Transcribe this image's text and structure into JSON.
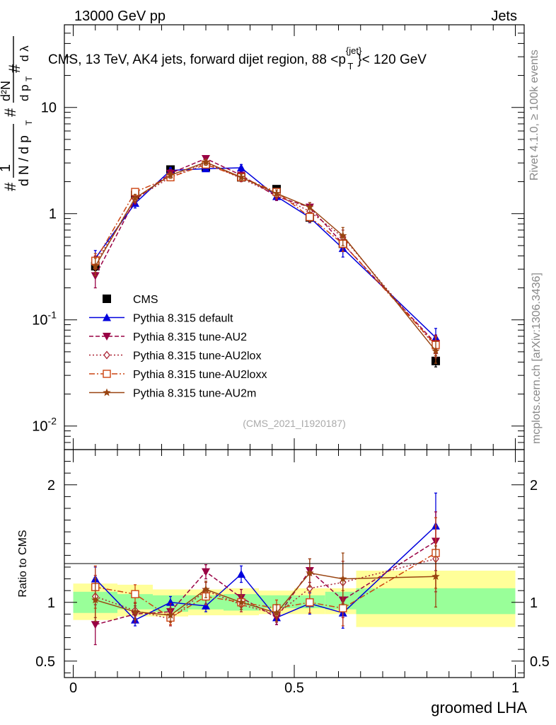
{
  "header": {
    "left": "13000 GeV pp",
    "right": "Jets"
  },
  "title_main": "CMS, 13 TeV, AK4 jets, forward dijet region, 88 <p",
  "title_sup": "{jet}",
  "title_sub": "T",
  "title_end": "}< 120 GeV",
  "side_labels": {
    "rivet": "Rivet 4.1.0, ≥ 100k events",
    "mcplots": "mcplots.cern.ch [arXiv:1306.3436]"
  },
  "watermark": "(CMS_2021_I1920187)",
  "ylabel_ratio": "Ratio to CMS",
  "xlabel": "groomed LHA",
  "colors": {
    "data": "#000000",
    "default": "#0000dd",
    "au2": "#990044",
    "au2lox": "#aa2233",
    "au2loxx": "#cc4411",
    "au2m": "#994411",
    "band_inner": "#99ff99",
    "band_outer": "#ffff99"
  },
  "chart_data": [
    {
      "type": "line",
      "yscale": "log",
      "xlim": [
        -0.02,
        1.02
      ],
      "ylim": [
        0.006,
        60
      ],
      "ytick_labels": [
        "10^-2",
        "10^-1",
        "1",
        "10"
      ],
      "xlabel": "groomed LHA",
      "legend_position": "lower-left",
      "x": [
        0.05,
        0.14,
        0.22,
        0.3,
        0.38,
        0.46,
        0.535,
        0.61,
        0.82
      ],
      "series": [
        {
          "name": "CMS",
          "values": [
            0.32,
            1.5,
            2.6,
            2.75,
            2.2,
            1.7,
            0.92,
            0.52,
            0.041
          ],
          "errors": [
            0.03,
            0.1,
            0.15,
            0.15,
            0.12,
            0.1,
            0.08,
            0.06,
            0.005
          ]
        },
        {
          "name": "Pythia 8.315 default",
          "values": [
            0.38,
            1.25,
            2.55,
            2.65,
            2.7,
            1.45,
            0.92,
            0.47,
            0.068
          ],
          "errors": [
            0.07,
            0.12,
            0.15,
            0.15,
            0.2,
            0.12,
            0.1,
            0.08,
            0.015
          ]
        },
        {
          "name": "Pythia 8.315 tune-AU2",
          "values": [
            0.26,
            1.35,
            2.4,
            3.3,
            2.3,
            1.45,
            1.15,
            0.52,
            0.06
          ],
          "errors": [
            0.06,
            0.12,
            0.2,
            0.2,
            0.15,
            0.12,
            0.12,
            0.08,
            0.012
          ]
        },
        {
          "name": "Pythia 8.315 tune-AU2lox",
          "values": [
            0.34,
            1.38,
            2.2,
            3.0,
            2.15,
            1.5,
            1.05,
            0.6,
            0.056
          ],
          "errors": [
            0.06,
            0.12,
            0.15,
            0.2,
            0.15,
            0.12,
            0.12,
            0.1,
            0.012
          ]
        },
        {
          "name": "Pythia 8.315 tune-AU2loxx",
          "values": [
            0.36,
            1.6,
            2.2,
            2.9,
            2.2,
            1.6,
            0.93,
            0.52,
            0.058
          ],
          "errors": [
            0.06,
            0.12,
            0.15,
            0.2,
            0.15,
            0.12,
            0.1,
            0.08,
            0.012
          ]
        },
        {
          "name": "Pythia 8.315 tune-AU2m",
          "values": [
            0.32,
            1.4,
            2.3,
            3.05,
            2.2,
            1.55,
            1.15,
            0.62,
            0.051
          ],
          "errors": [
            0.06,
            0.12,
            0.15,
            0.2,
            0.15,
            0.12,
            0.12,
            0.12,
            0.012
          ]
        }
      ]
    },
    {
      "type": "line",
      "xlim": [
        -0.02,
        1.02
      ],
      "ylim": [
        0.36,
        2.3
      ],
      "ylabel": "Ratio to CMS",
      "xlabel": "groomed LHA",
      "ytick_labels": [
        "0.5",
        "1",
        "2"
      ],
      "xtick_labels": [
        "0",
        "0.5",
        "1"
      ],
      "bins": [
        [
          0.0,
          0.1
        ],
        [
          0.1,
          0.18
        ],
        [
          0.18,
          0.26
        ],
        [
          0.26,
          0.34
        ],
        [
          0.34,
          0.42
        ],
        [
          0.42,
          0.5
        ],
        [
          0.5,
          0.57
        ],
        [
          0.57,
          0.64
        ],
        [
          0.64,
          1.0
        ]
      ],
      "band_inner": [
        [
          0.91,
          1.09
        ],
        [
          0.94,
          1.07
        ],
        [
          0.92,
          1.06
        ],
        [
          0.94,
          1.06
        ],
        [
          0.93,
          1.07
        ],
        [
          0.95,
          1.06
        ],
        [
          0.95,
          1.06
        ],
        [
          0.94,
          1.09
        ],
        [
          0.9,
          1.12
        ]
      ],
      "band_outer": [
        [
          0.85,
          1.16
        ],
        [
          0.88,
          1.15
        ],
        [
          0.88,
          1.11
        ],
        [
          0.89,
          1.11
        ],
        [
          0.89,
          1.12
        ],
        [
          0.9,
          1.1
        ],
        [
          0.9,
          1.12
        ],
        [
          0.9,
          1.12
        ],
        [
          0.79,
          1.27
        ]
      ],
      "x": [
        0.05,
        0.14,
        0.22,
        0.3,
        0.38,
        0.46,
        0.535,
        0.61,
        0.82
      ],
      "series": [
        {
          "name": "Pythia 8.315 default",
          "values": [
            1.2,
            0.85,
            1.0,
            0.97,
            1.24,
            0.87,
            0.99,
            0.91,
            1.65
          ],
          "errors": [
            0.1,
            0.05,
            0.05,
            0.05,
            0.07,
            0.06,
            0.09,
            0.13,
            0.28
          ]
        },
        {
          "name": "Pythia 8.315 tune-AU2",
          "values": [
            0.81,
            0.9,
            0.92,
            1.26,
            1.04,
            0.87,
            1.27,
            1.02,
            1.52
          ],
          "errors": [
            0.17,
            0.07,
            0.07,
            0.06,
            0.07,
            0.06,
            0.1,
            0.15,
            0.25
          ]
        },
        {
          "name": "Pythia 8.315 tune-AU2lox",
          "values": [
            1.05,
            0.93,
            0.86,
            1.1,
            0.98,
            0.9,
            1.12,
            1.17,
            1.37
          ],
          "errors": [
            0.18,
            0.07,
            0.06,
            0.07,
            0.06,
            0.07,
            0.11,
            0.18,
            0.28
          ]
        },
        {
          "name": "Pythia 8.315 tune-AU2loxx",
          "values": [
            1.13,
            1.07,
            0.87,
            1.05,
            1.0,
            0.95,
            1.0,
            0.95,
            1.42
          ],
          "errors": [
            0.18,
            0.08,
            0.06,
            0.07,
            0.06,
            0.07,
            0.09,
            0.15,
            0.3
          ]
        },
        {
          "name": "Pythia 8.315 tune-AU2m",
          "values": [
            1.02,
            0.92,
            0.89,
            1.11,
            1.0,
            0.91,
            1.25,
            1.2,
            1.22
          ],
          "errors": [
            0.18,
            0.07,
            0.06,
            0.07,
            0.06,
            0.07,
            0.12,
            0.22,
            0.26
          ]
        }
      ]
    }
  ]
}
